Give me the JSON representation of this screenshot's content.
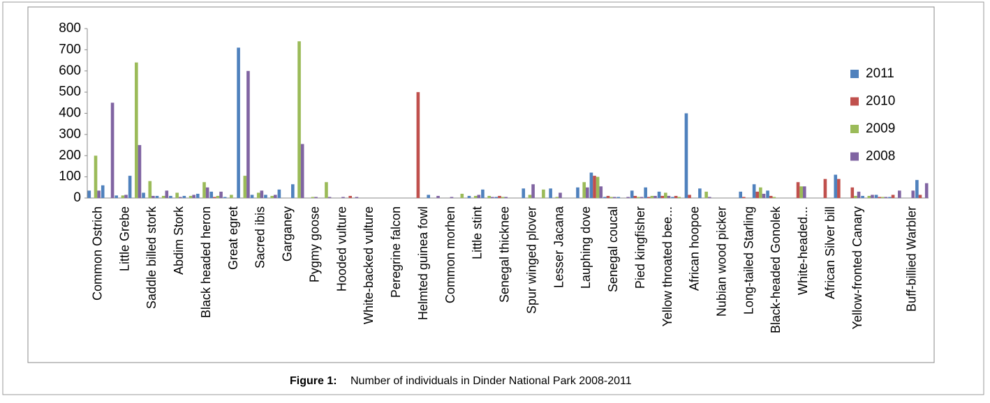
{
  "chart_data": {
    "type": "bar",
    "caption": {
      "label": "Figure 1:",
      "text": "Number of individuals in Dinder National Park 2008-2011"
    },
    "categories": [
      "Common Ostrich",
      null,
      "Little Grebe",
      null,
      "Saddle billed stork",
      null,
      "Abdim Stork",
      null,
      "Black headed heron",
      null,
      "Great egret",
      null,
      "Sacred ibis",
      null,
      "Garganey",
      null,
      "Pygmy goose",
      null,
      "Hooded vulture",
      null,
      "White-backed vulture",
      null,
      "Peregrine falcon",
      null,
      "Helmted guinea fowl",
      null,
      "Common morhen",
      null,
      "Little stint",
      null,
      "Senegal thicknee",
      null,
      "Spur winged plover",
      null,
      "Lesser Jacana",
      null,
      "Lauphing dove",
      null,
      "Senegal coucal",
      null,
      "Pied kingfisher",
      null,
      "Yellow throated bee...",
      null,
      "African hoopoe",
      null,
      "Nubian wood picker",
      null,
      "Long-tailed Starling",
      null,
      "Black-headed Gonolek",
      null,
      "White-headed...",
      null,
      "African Silver bill",
      null,
      "Yellow-fronted Canary",
      null,
      null,
      null,
      "Buff-billied Warbler",
      null
    ],
    "series": [
      {
        "name": "2011",
        "color": "#4f81bd",
        "values": [
          35,
          60,
          12,
          105,
          25,
          10,
          10,
          10,
          20,
          30,
          5,
          710,
          15,
          15,
          40,
          65,
          0,
          0,
          0,
          0,
          0,
          0,
          0,
          0,
          0,
          15,
          0,
          0,
          10,
          40,
          5,
          0,
          45,
          0,
          45,
          0,
          50,
          120,
          5,
          5,
          35,
          50,
          30,
          5,
          400,
          45,
          0,
          0,
          30,
          65,
          35,
          0,
          0,
          0,
          0,
          110,
          0,
          10,
          15,
          5,
          0,
          85
        ]
      },
      {
        "name": "2010",
        "color": "#c0504d",
        "values": [
          0,
          0,
          0,
          0,
          0,
          0,
          0,
          0,
          0,
          5,
          0,
          0,
          0,
          0,
          0,
          0,
          0,
          0,
          0,
          10,
          0,
          0,
          0,
          0,
          500,
          0,
          0,
          0,
          0,
          0,
          10,
          0,
          0,
          0,
          0,
          0,
          0,
          105,
          10,
          0,
          10,
          5,
          10,
          10,
          15,
          0,
          0,
          0,
          5,
          30,
          10,
          0,
          75,
          0,
          90,
          90,
          50,
          0,
          5,
          15,
          0,
          15
        ]
      },
      {
        "name": "2009",
        "color": "#9bbb59",
        "values": [
          200,
          0,
          12,
          640,
          80,
          10,
          25,
          10,
          75,
          10,
          15,
          105,
          25,
          10,
          0,
          740,
          5,
          75,
          0,
          0,
          0,
          0,
          0,
          0,
          0,
          0,
          0,
          20,
          10,
          10,
          5,
          0,
          15,
          40,
          5,
          0,
          75,
          100,
          5,
          0,
          5,
          10,
          25,
          5,
          0,
          30,
          0,
          0,
          0,
          50,
          5,
          0,
          55,
          0,
          0,
          0,
          10,
          10,
          5,
          0,
          0,
          0
        ]
      },
      {
        "name": "2008",
        "color": "#8064a2",
        "values": [
          35,
          450,
          15,
          250,
          10,
          35,
          5,
          15,
          50,
          30,
          0,
          600,
          35,
          15,
          0,
          255,
          5,
          5,
          5,
          5,
          0,
          0,
          0,
          0,
          0,
          10,
          5,
          0,
          15,
          5,
          5,
          0,
          65,
          0,
          25,
          0,
          50,
          55,
          5,
          5,
          5,
          10,
          10,
          0,
          0,
          5,
          0,
          0,
          0,
          20,
          0,
          0,
          55,
          0,
          0,
          0,
          30,
          15,
          5,
          35,
          35,
          70
        ]
      }
    ],
    "ylim": [
      0,
      800
    ],
    "yticks": [
      0,
      100,
      200,
      300,
      400,
      500,
      600,
      700,
      800
    ]
  }
}
